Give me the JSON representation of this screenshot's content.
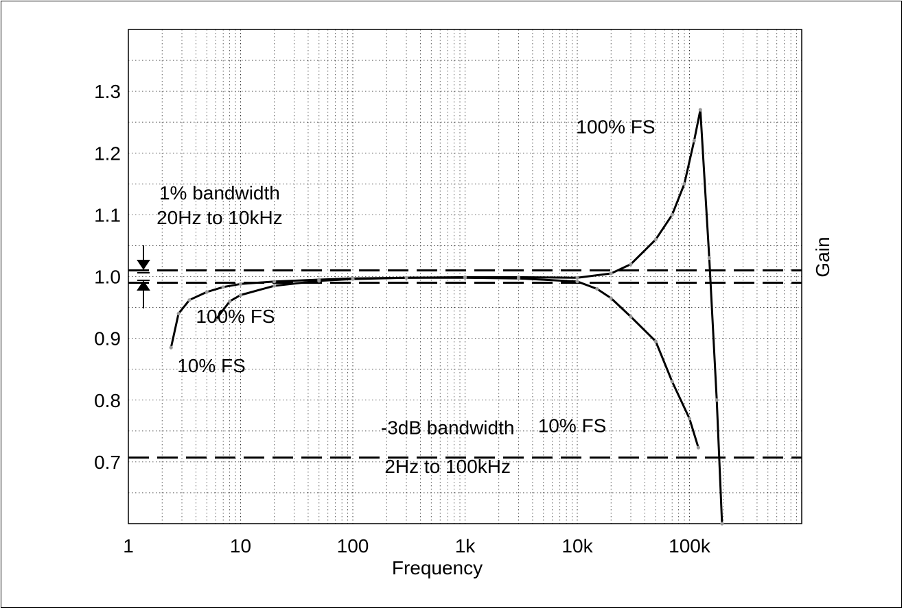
{
  "chart_data": {
    "type": "line",
    "xscale": "log",
    "xlim": [
      1,
      1000000
    ],
    "ylim": [
      0.6,
      1.4
    ],
    "grid": true,
    "xlabel": "Frequency",
    "ylabel": "Gain",
    "xticks": [
      {
        "value": 1,
        "label": "1"
      },
      {
        "value": 10,
        "label": "10"
      },
      {
        "value": 100,
        "label": "100"
      },
      {
        "value": 1000,
        "label": "1k"
      },
      {
        "value": 10000,
        "label": "10k"
      },
      {
        "value": 100000,
        "label": "100k"
      }
    ],
    "yticks": [
      {
        "value": 0.7,
        "label": "0.7"
      },
      {
        "value": 0.8,
        "label": "0.8"
      },
      {
        "value": 0.9,
        "label": "0.9"
      },
      {
        "value": 1.0,
        "label": "1.0"
      },
      {
        "value": 1.1,
        "label": "1.1"
      },
      {
        "value": 1.2,
        "label": "1.2"
      },
      {
        "value": 1.3,
        "label": "1.3"
      }
    ],
    "reference_lines": [
      {
        "y": 1.01
      },
      {
        "y": 0.99
      },
      {
        "y": 0.707
      }
    ],
    "series": [
      {
        "name": "10% FS",
        "x": [
          2.4,
          2.8,
          3.5,
          5,
          7,
          10,
          20,
          50,
          100,
          300,
          1000,
          3000,
          10000,
          15000,
          20000,
          30000,
          50000,
          70000,
          100000,
          120000
        ],
        "y": [
          0.885,
          0.94,
          0.962,
          0.975,
          0.983,
          0.988,
          0.992,
          0.995,
          0.997,
          0.998,
          0.998,
          0.997,
          0.992,
          0.98,
          0.965,
          0.935,
          0.895,
          0.83,
          0.77,
          0.723
        ]
      },
      {
        "name": "100% FS",
        "x": [
          6,
          8,
          10,
          20,
          50,
          100,
          300,
          1000,
          3000,
          10000,
          20000,
          30000,
          50000,
          70000,
          90000,
          110000,
          125000,
          150000,
          175000,
          195000
        ],
        "y": [
          0.93,
          0.96,
          0.97,
          0.985,
          0.993,
          0.996,
          0.998,
          0.999,
          0.999,
          0.998,
          1.005,
          1.02,
          1.06,
          1.1,
          1.15,
          1.22,
          1.27,
          1.03,
          0.8,
          0.6
        ]
      }
    ],
    "annotations": [
      {
        "text": "1% bandwidth",
        "x": 6.5,
        "y": 1.125
      },
      {
        "text": "20Hz to 10kHz",
        "x": 6.5,
        "y": 1.085
      },
      {
        "text": "100% FS",
        "x": 9,
        "y": 0.925
      },
      {
        "text": "10% FS",
        "x": 5.5,
        "y": 0.845
      },
      {
        "text": "100% FS",
        "x": 22000,
        "y": 1.232
      },
      {
        "text": "10% FS",
        "x": 9000,
        "y": 0.748
      },
      {
        "text": "-3dB bandwidth",
        "x": 700,
        "y": 0.745
      },
      {
        "text": "2Hz to 100kHz",
        "x": 700,
        "y": 0.682
      }
    ]
  }
}
